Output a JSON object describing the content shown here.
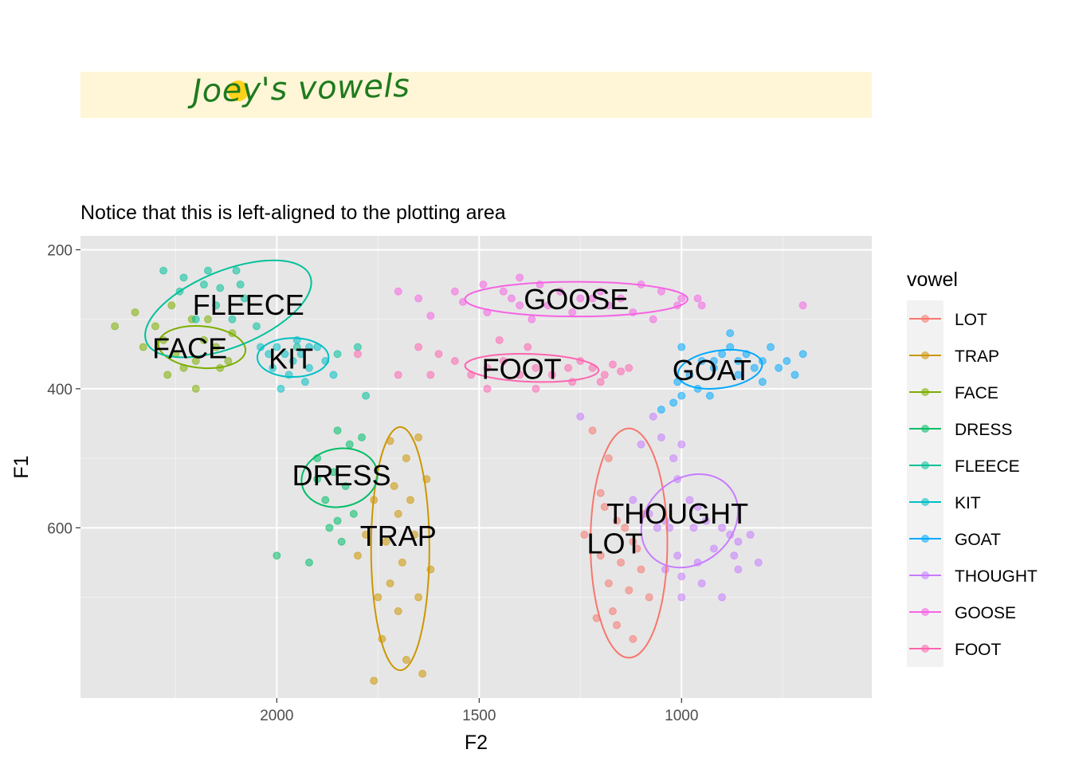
{
  "title": "Joey's vowels",
  "subtitle": "Notice that this is left-aligned to the plotting area",
  "colors": {
    "title_band": "#fef6d6",
    "title_dot": "#ffd21a",
    "title_text": "#1f7a1f",
    "panel": "#e6e6e6"
  },
  "chart_data": {
    "type": "scatter",
    "xlabel": "F2",
    "ylabel": "F1",
    "x_reversed": true,
    "y_reversed": true,
    "xlim": [
      2485,
      530
    ],
    "ylim": [
      845,
      180
    ],
    "x_ticks": [
      2000,
      1500,
      1000
    ],
    "y_ticks": [
      200,
      400,
      600
    ],
    "grid": true,
    "legend_title": "vowel",
    "legend_position": "right",
    "series": [
      {
        "name": "LOT",
        "color": "#F8766D",
        "points": [
          [
            1220,
            460
          ],
          [
            1180,
            500
          ],
          [
            1160,
            590
          ],
          [
            1120,
            620
          ],
          [
            1200,
            640
          ],
          [
            1150,
            650
          ],
          [
            1100,
            660
          ],
          [
            1180,
            680
          ],
          [
            1130,
            690
          ],
          [
            1080,
            700
          ],
          [
            1210,
            730
          ],
          [
            1160,
            740
          ],
          [
            1120,
            760
          ],
          [
            1190,
            570
          ],
          [
            1090,
            580
          ],
          [
            1240,
            610
          ],
          [
            1140,
            600
          ],
          [
            1200,
            550
          ],
          [
            1170,
            720
          ],
          [
            1110,
            630
          ]
        ],
        "ellipse": {
          "cx": 1130,
          "cy": 622,
          "rx": 95,
          "ry": 165,
          "angle": 0
        },
        "label": "LOT",
        "label_pos": [
          1165,
          623
        ]
      },
      {
        "name": "TRAP",
        "color": "#CD9600",
        "points": [
          [
            1720,
            475
          ],
          [
            1650,
            470
          ],
          [
            1680,
            500
          ],
          [
            1630,
            530
          ],
          [
            1760,
            560
          ],
          [
            1700,
            580
          ],
          [
            1730,
            620
          ],
          [
            1660,
            610
          ],
          [
            1690,
            650
          ],
          [
            1720,
            680
          ],
          [
            1650,
            700
          ],
          [
            1700,
            720
          ],
          [
            1740,
            760
          ],
          [
            1680,
            790
          ],
          [
            1760,
            820
          ],
          [
            1640,
            810
          ],
          [
            1780,
            610
          ],
          [
            1710,
            540
          ],
          [
            1670,
            560
          ],
          [
            1800,
            640
          ],
          [
            1620,
            660
          ],
          [
            1750,
            700
          ]
        ],
        "ellipse": {
          "cx": 1695,
          "cy": 630,
          "rx": 72,
          "ry": 175,
          "angle": 0
        },
        "label": "TRAP",
        "label_pos": [
          1700,
          612
        ]
      },
      {
        "name": "FACE",
        "color": "#7CAE00",
        "points": [
          [
            2350,
            290
          ],
          [
            2300,
            310
          ],
          [
            2260,
            280
          ],
          [
            2210,
            300
          ],
          [
            2180,
            330
          ],
          [
            2250,
            350
          ],
          [
            2200,
            360
          ],
          [
            2150,
            340
          ],
          [
            2120,
            360
          ],
          [
            2230,
            370
          ],
          [
            2280,
            330
          ],
          [
            2170,
            300
          ],
          [
            2400,
            310
          ],
          [
            2330,
            340
          ],
          [
            2110,
            320
          ],
          [
            2200,
            400
          ],
          [
            2270,
            380
          ],
          [
            2140,
            370
          ]
        ],
        "ellipse": {
          "cx": 2185,
          "cy": 340,
          "rx": 108,
          "ry": 30,
          "angle": 5
        },
        "label": "FACE",
        "label_pos": [
          2215,
          342
        ]
      },
      {
        "name": "DRESS",
        "color": "#00BE67",
        "points": [
          [
            1850,
            460
          ],
          [
            1820,
            480
          ],
          [
            1900,
            500
          ],
          [
            1860,
            520
          ],
          [
            1830,
            540
          ],
          [
            1880,
            560
          ],
          [
            1810,
            580
          ],
          [
            1870,
            600
          ],
          [
            1840,
            620
          ],
          [
            2000,
            640
          ],
          [
            1920,
            650
          ],
          [
            1790,
            470
          ],
          [
            1850,
            590
          ],
          [
            1900,
            530
          ]
        ],
        "ellipse": {
          "cx": 1845,
          "cy": 528,
          "rx": 72,
          "ry": 55,
          "angle": 80
        },
        "label": "DRESS",
        "label_pos": [
          1840,
          525
        ]
      },
      {
        "name": "FLEECE",
        "color": "#00C19A",
        "points": [
          [
            2280,
            230
          ],
          [
            2230,
            240
          ],
          [
            2180,
            250
          ],
          [
            2140,
            255
          ],
          [
            2100,
            230
          ],
          [
            2080,
            270
          ],
          [
            2150,
            280
          ],
          [
            2200,
            300
          ],
          [
            2110,
            300
          ],
          [
            2050,
            310
          ],
          [
            1950,
            340
          ],
          [
            2240,
            260
          ],
          [
            2170,
            230
          ],
          [
            2090,
            250
          ],
          [
            1780,
            410
          ],
          [
            1800,
            340
          ],
          [
            1850,
            350
          ]
        ],
        "ellipse": {
          "cx": 2120,
          "cy": 285,
          "rx": 218,
          "ry": 55,
          "angle": -22
        },
        "label": "FLEECE",
        "label_pos": [
          2070,
          280
        ]
      },
      {
        "name": "KIT",
        "color": "#00BFC4",
        "points": [
          [
            2000,
            340
          ],
          [
            1980,
            350
          ],
          [
            1960,
            360
          ],
          [
            1940,
            350
          ],
          [
            1920,
            370
          ],
          [
            1900,
            340
          ],
          [
            1970,
            380
          ],
          [
            1930,
            390
          ],
          [
            2010,
            370
          ],
          [
            1880,
            360
          ],
          [
            2040,
            340
          ],
          [
            1950,
            330
          ],
          [
            1990,
            400
          ],
          [
            1860,
            380
          ],
          [
            2020,
            350
          ],
          [
            1920,
            340
          ]
        ],
        "ellipse": {
          "cx": 1960,
          "cy": 355,
          "rx": 88,
          "ry": 28,
          "angle": 0
        },
        "label": "KIT",
        "label_pos": [
          1965,
          357
        ]
      },
      {
        "name": "GOAT",
        "color": "#00A9FF",
        "points": [
          [
            950,
            360
          ],
          [
            920,
            370
          ],
          [
            900,
            350
          ],
          [
            880,
            340
          ],
          [
            860,
            360
          ],
          [
            840,
            350
          ],
          [
            820,
            370
          ],
          [
            800,
            360
          ],
          [
            780,
            340
          ],
          [
            760,
            370
          ],
          [
            740,
            360
          ],
          [
            720,
            380
          ],
          [
            700,
            350
          ],
          [
            980,
            380
          ],
          [
            1010,
            390
          ],
          [
            960,
            400
          ],
          [
            930,
            410
          ],
          [
            1000,
            410
          ],
          [
            1020,
            420
          ],
          [
            1050,
            430
          ],
          [
            800,
            390
          ],
          [
            880,
            320
          ],
          [
            920,
            360
          ],
          [
            860,
            380
          ],
          [
            1000,
            340
          ]
        ],
        "ellipse": {
          "cx": 905,
          "cy": 372,
          "rx": 105,
          "ry": 27,
          "angle": -8
        },
        "label": "GOAT",
        "label_pos": [
          925,
          374
        ]
      },
      {
        "name": "THOUGHT",
        "color": "#C77CFF",
        "points": [
          [
            1070,
            440
          ],
          [
            1050,
            470
          ],
          [
            1100,
            480
          ],
          [
            1020,
            500
          ],
          [
            1010,
            530
          ],
          [
            980,
            560
          ],
          [
            960,
            570
          ],
          [
            940,
            590
          ],
          [
            900,
            600
          ],
          [
            880,
            610
          ],
          [
            860,
            620
          ],
          [
            1010,
            640
          ],
          [
            960,
            650
          ],
          [
            1040,
            660
          ],
          [
            920,
            630
          ],
          [
            870,
            640
          ],
          [
            1000,
            670
          ],
          [
            970,
            600
          ],
          [
            1040,
            590
          ],
          [
            1080,
            580
          ],
          [
            1120,
            560
          ],
          [
            1030,
            600
          ],
          [
            950,
            680
          ],
          [
            1000,
            700
          ],
          [
            1060,
            600
          ],
          [
            900,
            700
          ],
          [
            860,
            660
          ],
          [
            810,
            650
          ],
          [
            830,
            610
          ],
          [
            1250,
            440
          ],
          [
            1000,
            480
          ]
        ],
        "ellipse": {
          "cx": 980,
          "cy": 590,
          "rx": 105,
          "ry": 75,
          "angle": 50
        },
        "label": "THOUGHT",
        "label_pos": [
          1010,
          580
        ]
      },
      {
        "name": "GOOSE",
        "color": "#F564E3",
        "points": [
          [
            1560,
            260
          ],
          [
            1490,
            250
          ],
          [
            1440,
            260
          ],
          [
            1400,
            240
          ],
          [
            1350,
            250
          ],
          [
            1300,
            260
          ],
          [
            1250,
            270
          ],
          [
            1200,
            260
          ],
          [
            1150,
            270
          ],
          [
            1100,
            250
          ],
          [
            1050,
            260
          ],
          [
            1000,
            270
          ],
          [
            950,
            280
          ],
          [
            1480,
            290
          ],
          [
            1420,
            270
          ],
          [
            1330,
            280
          ],
          [
            1270,
            290
          ],
          [
            1220,
            270
          ],
          [
            1180,
            280
          ],
          [
            1120,
            290
          ],
          [
            1070,
            300
          ],
          [
            1650,
            270
          ],
          [
            1700,
            260
          ],
          [
            1620,
            295
          ],
          [
            1540,
            275
          ],
          [
            1010,
            280
          ],
          [
            960,
            270
          ],
          [
            1370,
            300
          ],
          [
            700,
            280
          ],
          [
            1400,
            280
          ]
        ],
        "ellipse": {
          "cx": 1260,
          "cy": 271,
          "rx": 275,
          "ry": 25,
          "angle": 0
        },
        "label": "GOOSE",
        "label_pos": [
          1260,
          272
        ]
      },
      {
        "name": "FOOT",
        "color": "#FF64B0",
        "points": [
          [
            1480,
            370
          ],
          [
            1440,
            360
          ],
          [
            1400,
            380
          ],
          [
            1360,
            370
          ],
          [
            1320,
            380
          ],
          [
            1280,
            370
          ],
          [
            1250,
            360
          ],
          [
            1220,
            370
          ],
          [
            1190,
            380
          ],
          [
            1170,
            365
          ],
          [
            1150,
            375
          ],
          [
            1130,
            370
          ],
          [
            1560,
            360
          ],
          [
            1520,
            380
          ],
          [
            1600,
            350
          ],
          [
            1620,
            380
          ],
          [
            1650,
            340
          ],
          [
            1450,
            330
          ],
          [
            1360,
            400
          ],
          [
            1480,
            400
          ],
          [
            1200,
            390
          ],
          [
            1380,
            340
          ],
          [
            1270,
            390
          ],
          [
            1700,
            380
          ],
          [
            1800,
            350
          ]
        ],
        "ellipse": {
          "cx": 1370,
          "cy": 370,
          "rx": 165,
          "ry": 20,
          "angle": 2
        },
        "label": "FOOT",
        "label_pos": [
          1395,
          372
        ]
      }
    ]
  }
}
